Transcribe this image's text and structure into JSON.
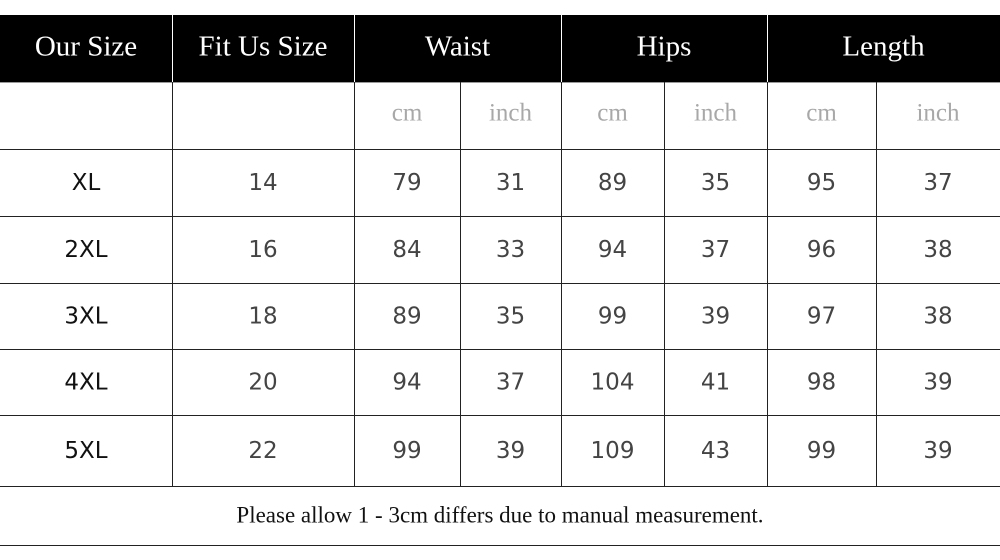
{
  "table": {
    "header": [
      "Our Size",
      "Fit Us Size",
      "Waist",
      "Hips",
      "Length"
    ],
    "units": [
      "cm",
      "inch",
      "cm",
      "inch",
      "cm",
      "inch"
    ],
    "rows": [
      [
        "XL",
        "14",
        "79",
        "31",
        "89",
        "35",
        "95",
        "37"
      ],
      [
        "2XL",
        "16",
        "84",
        "33",
        "94",
        "37",
        "96",
        "38"
      ],
      [
        "3XL",
        "18",
        "89",
        "35",
        "99",
        "39",
        "97",
        "38"
      ],
      [
        "4XL",
        "20",
        "94",
        "37",
        "104",
        "41",
        "98",
        "39"
      ],
      [
        "5XL",
        "22",
        "99",
        "39",
        "109",
        "43",
        "99",
        "39"
      ]
    ],
    "note": "Please allow 1 - 3cm differs due to manual measurement."
  }
}
